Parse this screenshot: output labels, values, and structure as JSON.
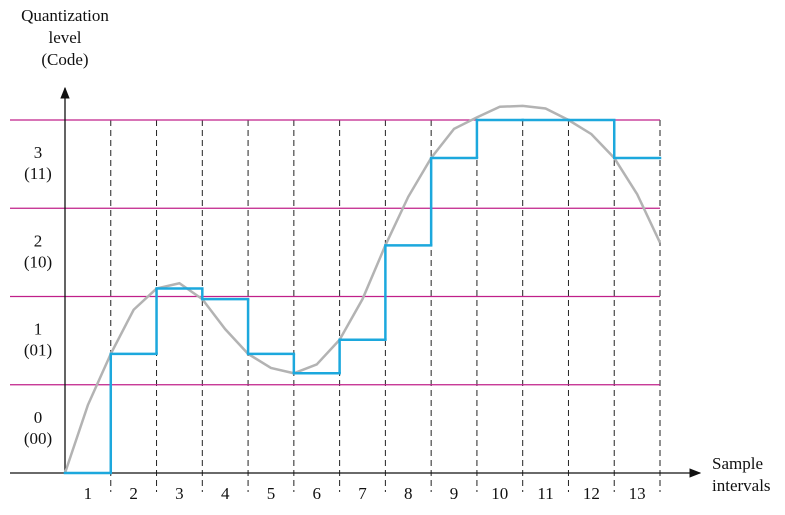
{
  "chart_data": {
    "type": "quantization",
    "y_label": [
      "Quantization",
      "level",
      "(Code)"
    ],
    "x_label": [
      "Sample",
      "intervals"
    ],
    "categories": [
      "1",
      "2",
      "3",
      "4",
      "5",
      "6",
      "7",
      "8",
      "9",
      "10",
      "11",
      "12",
      "13"
    ],
    "levels": [
      {
        "level": "0",
        "code": "(00)"
      },
      {
        "level": "1",
        "code": "(01)"
      },
      {
        "level": "2",
        "code": "(10)"
      },
      {
        "level": "3",
        "code": "(11)"
      }
    ],
    "xlim": [
      0,
      13
    ],
    "ylim": [
      0,
      4
    ],
    "yticks": [
      1,
      2,
      3,
      4
    ],
    "grid_color": "#c0208a",
    "series": [
      {
        "color": "#b3b3b3",
        "x": [
          0,
          0.5,
          1,
          1.5,
          2,
          2.5,
          3,
          3.5,
          4,
          4.5,
          5,
          5.5,
          6,
          6.5,
          7,
          7.5,
          8,
          8.5,
          9,
          9.5,
          10,
          10.5,
          11,
          11.5,
          12,
          12.5,
          13
        ],
        "values": [
          0,
          0.77,
          1.35,
          1.85,
          2.09,
          2.15,
          1.97,
          1.63,
          1.35,
          1.19,
          1.13,
          1.23,
          1.51,
          1.97,
          2.58,
          3.13,
          3.57,
          3.9,
          4.03,
          4.15,
          4.16,
          4.13,
          4.0,
          3.84,
          3.57,
          3.16,
          2.61
        ]
      },
      {
        "color": "#1ca8dd",
        "values": [
          0,
          1.35,
          2.09,
          1.97,
          1.35,
          1.13,
          1.51,
          2.58,
          3.57,
          4.0,
          4.0,
          4.0,
          3.57
        ]
      }
    ]
  }
}
